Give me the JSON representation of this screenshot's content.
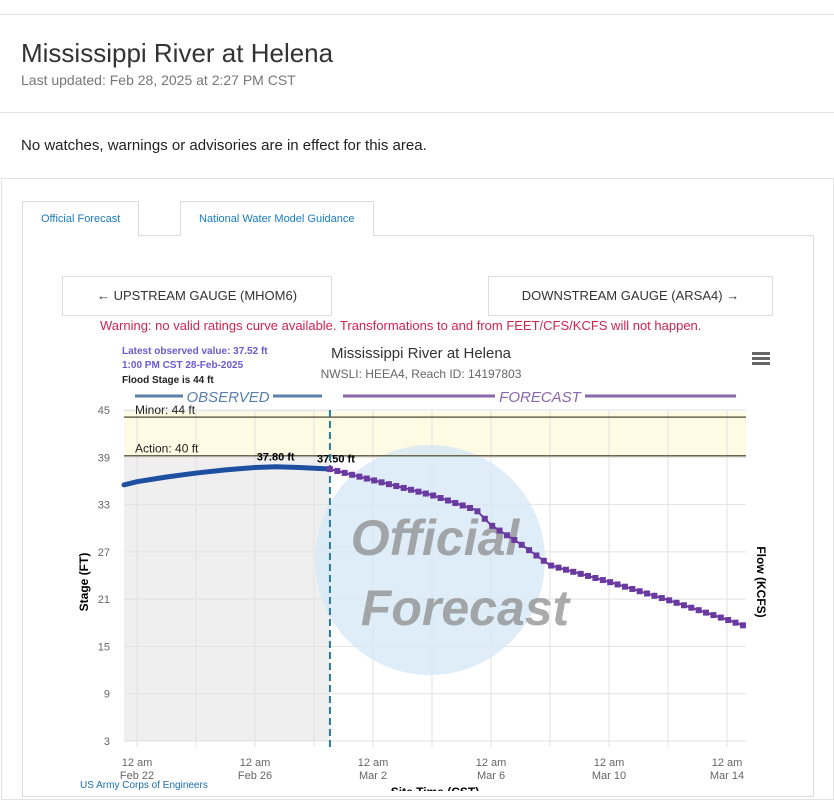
{
  "header": {
    "title": "Mississippi River at Helena",
    "updated": "Last updated: Feb 28, 2025 at 2:27 PM CST"
  },
  "alert": "No watches, warnings or advisories are in effect for this area.",
  "tabs": [
    {
      "label": "Official Forecast",
      "active": true
    },
    {
      "label": "National Water Model Guidance",
      "active": false
    }
  ],
  "nav": {
    "upstream": "UPSTREAM GAUGE (MHOM6)",
    "downstream": "DOWNSTREAM GAUGE (ARSA4)"
  },
  "warning": "Warning: no valid ratings curve available. Transformations to and from FEET/CFS/KCFS will not happen.",
  "chart_data": {
    "type": "line",
    "title": "Mississippi River at Helena",
    "subtitle": "NWSLI: HEEA4, Reach ID: 14197803",
    "info": [
      "Latest observed value: 37.52 ft",
      "1:00 PM CST 28-Feb-2025",
      "Flood Stage is 44 ft"
    ],
    "ylabel": "Stage (FT)",
    "y2label": "Flow (KCFS)",
    "xlabel": "Site Time (CST)",
    "ylim": [
      3,
      45
    ],
    "yticks": [
      3,
      9,
      15,
      21,
      27,
      33,
      39,
      45
    ],
    "xticks": [
      {
        "l1": "12 am",
        "l2": "Feb 22",
        "day": 22
      },
      {
        "l1": "12 am",
        "l2": "Feb 26",
        "day": 26
      },
      {
        "l1": "12 am",
        "l2": "Mar 2",
        "day": 30
      },
      {
        "l1": "12 am",
        "l2": "Mar 6",
        "day": 34
      },
      {
        "l1": "12 am",
        "l2": "Mar 10",
        "day": 38
      },
      {
        "l1": "12 am",
        "l2": "Mar 14",
        "day": 42
      }
    ],
    "xlim_days_from_feb": [
      21.56,
      42.6
    ],
    "sections": {
      "observed": "OBSERVED",
      "forecast": "FORECAST"
    },
    "thresholds": [
      {
        "label": "Minor: 44 ft",
        "value": 44
      },
      {
        "label": "Action: 40 ft",
        "value": 40
      }
    ],
    "observed": {
      "name": "Observed",
      "color": "#1f4fa0",
      "days": [
        21.56,
        22,
        23,
        24,
        25,
        26,
        26.7,
        27.5,
        28.54
      ],
      "values": [
        35.5,
        35.9,
        36.5,
        37.0,
        37.4,
        37.7,
        37.8,
        37.7,
        37.52
      ],
      "peak_label": "37.80 ft"
    },
    "forecast": {
      "name": "Forecast",
      "color": "#6a3aa0",
      "days": [
        28.54,
        30,
        32,
        33.5,
        34,
        35,
        36,
        38,
        40,
        42,
        42.6
      ],
      "values": [
        37.5,
        36.1,
        34.2,
        32.3,
        30.4,
        28.0,
        25.3,
        23.2,
        20.9,
        18.4,
        17.6
      ],
      "start_label": "37.50 ft"
    },
    "watermark": [
      "Official",
      "Forecast"
    ],
    "credit": "US Army Corps of Engineers"
  }
}
